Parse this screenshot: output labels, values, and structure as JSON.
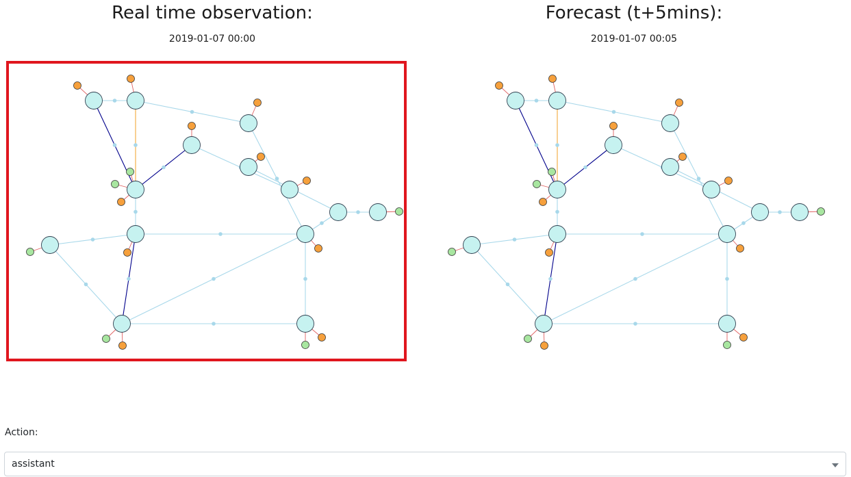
{
  "observation": {
    "title": "Real time observation:",
    "timestamp": "2019-01-07 00:00"
  },
  "forecast": {
    "title": "Forecast (t+5mins):",
    "timestamp": "2019-01-07 00:05"
  },
  "action": {
    "label": "Action:",
    "selected": "assistant"
  },
  "colors": {
    "substation": "#c6f2f0",
    "load": "#f6a03c",
    "generator": "#a8e6a0",
    "line_normal": "#a8d8ea",
    "line_overloaded": "#00008b",
    "line_warning": "#f2a93b",
    "element_link": "#e06060",
    "highlight": "#e0161e"
  }
}
